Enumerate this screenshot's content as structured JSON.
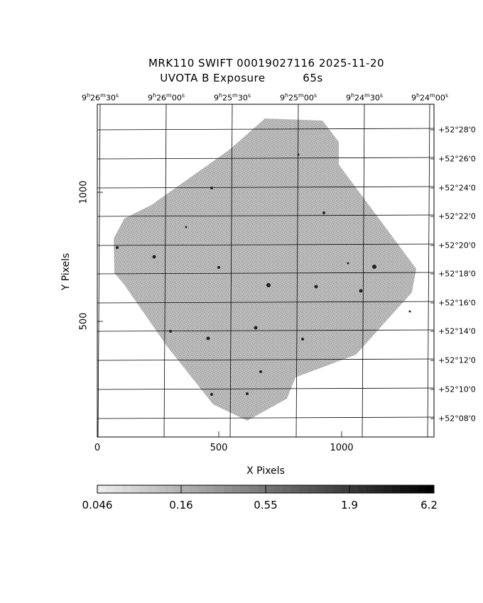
{
  "title": {
    "line1": "MRK110 SWIFT 00019027116 2025-11-20",
    "line2": "UVOTA B Exposure          65s"
  },
  "ra_labels": [
    {
      "h": "9",
      "m": "26",
      "s": "30"
    },
    {
      "h": "9",
      "m": "26",
      "s": "00"
    },
    {
      "h": "9",
      "m": "25",
      "s": "30"
    },
    {
      "h": "9",
      "m": "25",
      "s": "00"
    },
    {
      "h": "9",
      "m": "24",
      "s": "30"
    },
    {
      "h": "9",
      "m": "24",
      "s": "00"
    }
  ],
  "dec_labels": [
    "+52°28'0",
    "+52°26'0",
    "+52°24'0",
    "+52°22'0",
    "+52°20'0",
    "+52°18'0",
    "+52°16'0",
    "+52°14'0",
    "+52°12'0",
    "+52°10'0",
    "+52°08'0"
  ],
  "x_ticks": [
    "0",
    "500",
    "1000"
  ],
  "y_ticks": [
    "500",
    "1000"
  ],
  "x_label": "X Pixels",
  "y_label": "Y Pixels",
  "colorbar": {
    "labels": [
      "0.046",
      "0.16",
      "0.55",
      "1.9",
      "6.2"
    ]
  },
  "colors": {
    "background": "#ffffff",
    "exposure_field": "#a8a8a8",
    "grid": "#000000"
  }
}
